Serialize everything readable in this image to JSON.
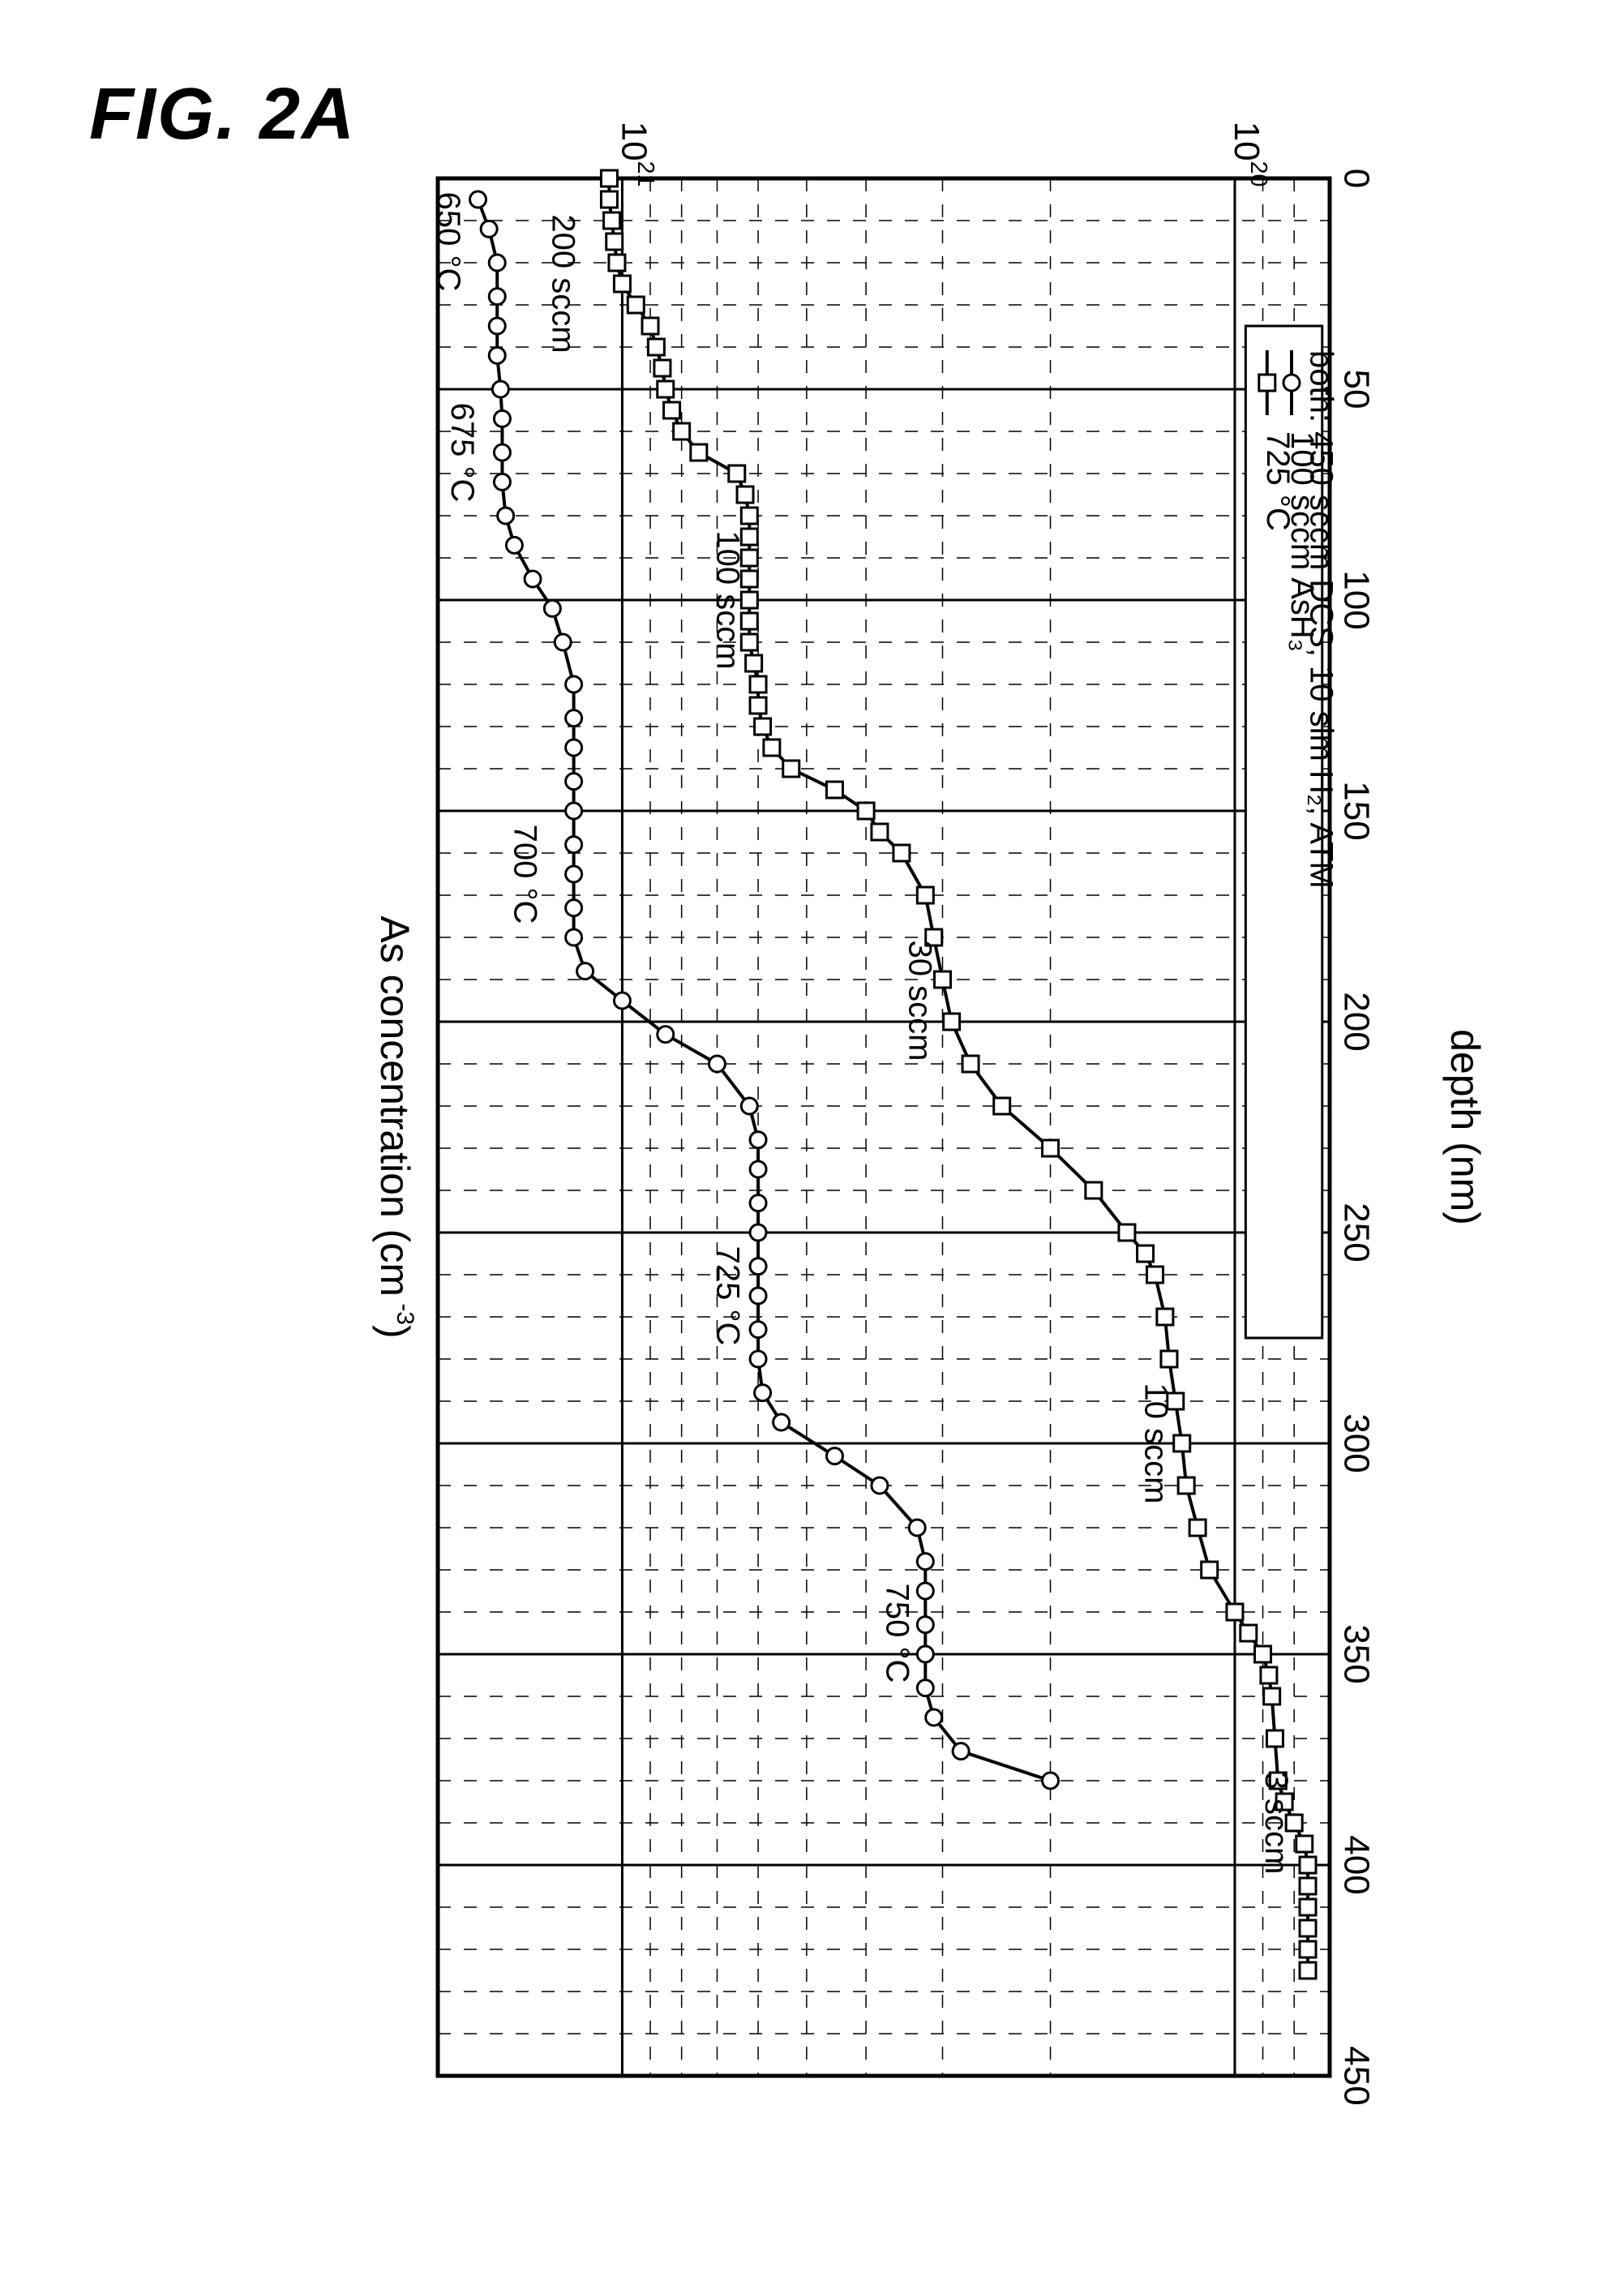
{
  "figure_label": "FIG. 2A",
  "chart": {
    "type": "line-log",
    "orientation_note": "image is rotated 90° CW — depth axis runs top→bottom, concentration axis runs right→left",
    "xlabel": "depth (nm)",
    "ylabel": "As concentration (cm⁻³)",
    "xlim": [
      0,
      450
    ],
    "ylim": [
      7e+19,
      2e+21
    ],
    "xtick_step": 50,
    "xticks": [
      0,
      50,
      100,
      150,
      200,
      250,
      300,
      350,
      400,
      450
    ],
    "yticks_major": [
      1e+20,
      1e+21
    ],
    "ytick_labels": [
      "10²⁰",
      "10²¹"
    ],
    "font_axis_label": 50,
    "font_tick": 44,
    "font_anno": 40,
    "font_legend": 40,
    "grid_color": "#000000",
    "frame_color": "#000000",
    "background_color": "#ffffff",
    "line_width": 4,
    "marker_outline_width": 3,
    "marker_size": 20,
    "marker_fill": "#ffffff",
    "series": [
      {
        "name": "725 °C",
        "marker": "square",
        "points": [
          [
            0,
            1.05e+21
          ],
          [
            5,
            1.05e+21
          ],
          [
            10,
            1.04e+21
          ],
          [
            15,
            1.03e+21
          ],
          [
            20,
            1.02e+21
          ],
          [
            25,
            1e+21
          ],
          [
            30,
            9.5e+20
          ],
          [
            35,
            9e+20
          ],
          [
            40,
            8.8e+20
          ],
          [
            45,
            8.6e+20
          ],
          [
            50,
            8.5e+20
          ],
          [
            55,
            8.3e+20
          ],
          [
            60,
            8e+20
          ],
          [
            65,
            7.5e+20
          ],
          [
            70,
            6.5e+20
          ],
          [
            75,
            6.3e+20
          ],
          [
            80,
            6.2e+20
          ],
          [
            85,
            6.2e+20
          ],
          [
            90,
            6.2e+20
          ],
          [
            95,
            6.2e+20
          ],
          [
            100,
            6.2e+20
          ],
          [
            105,
            6.2e+20
          ],
          [
            110,
            6.2e+20
          ],
          [
            115,
            6.1e+20
          ],
          [
            120,
            6e+20
          ],
          [
            125,
            6e+20
          ],
          [
            130,
            5.9e+20
          ],
          [
            135,
            5.7e+20
          ],
          [
            140,
            5.3e+20
          ],
          [
            145,
            4.5e+20
          ],
          [
            150,
            4e+20
          ],
          [
            155,
            3.8e+20
          ],
          [
            160,
            3.5e+20
          ],
          [
            170,
            3.2e+20
          ],
          [
            180,
            3.1e+20
          ],
          [
            190,
            3e+20
          ],
          [
            200,
            2.9e+20
          ],
          [
            210,
            2.7e+20
          ],
          [
            220,
            2.4e+20
          ],
          [
            230,
            2e+20
          ],
          [
            240,
            1.7e+20
          ],
          [
            250,
            1.5e+20
          ],
          [
            255,
            1.4e+20
          ],
          [
            260,
            1.35e+20
          ],
          [
            270,
            1.3e+20
          ],
          [
            280,
            1.28e+20
          ],
          [
            290,
            1.25e+20
          ],
          [
            300,
            1.22e+20
          ],
          [
            310,
            1.2e+20
          ],
          [
            320,
            1.15e+20
          ],
          [
            330,
            1.1e+20
          ],
          [
            340,
            1e+20
          ],
          [
            345,
            9.5e+19
          ],
          [
            350,
            9e+19
          ],
          [
            355,
            8.8e+19
          ],
          [
            360,
            8.7e+19
          ],
          [
            370,
            8.6e+19
          ],
          [
            380,
            8.5e+19
          ],
          [
            385,
            8.3e+19
          ],
          [
            390,
            8e+19
          ],
          [
            395,
            7.7e+19
          ],
          [
            400,
            7.6e+19
          ],
          [
            405,
            7.6e+19
          ],
          [
            410,
            7.6e+19
          ],
          [
            415,
            7.6e+19
          ],
          [
            420,
            7.6e+19
          ],
          [
            425,
            7.6e+19
          ]
        ],
        "annotations": [
          {
            "depth": 25,
            "conc": 1.3e+21,
            "text": "200 sccm"
          },
          {
            "depth": 100,
            "conc": 7e+20,
            "text": "100 sccm"
          },
          {
            "depth": 195,
            "conc": 3.4e+20,
            "text": "30 sccm"
          },
          {
            "depth": 300,
            "conc": 1.4e+20,
            "text": "10 sccm"
          },
          {
            "depth": 390,
            "conc": 8.9e+19,
            "text": "3 sccm"
          }
        ]
      },
      {
        "name": "100 sccm AsH₃",
        "marker": "circle",
        "points": [
          [
            5,
            1.72e+21
          ],
          [
            12,
            1.65e+21
          ],
          [
            20,
            1.6e+21
          ],
          [
            28,
            1.6e+21
          ],
          [
            35,
            1.6e+21
          ],
          [
            42,
            1.6e+21
          ],
          [
            50,
            1.58e+21
          ],
          [
            57,
            1.57e+21
          ],
          [
            65,
            1.57e+21
          ],
          [
            72,
            1.57e+21
          ],
          [
            80,
            1.55e+21
          ],
          [
            87,
            1.5e+21
          ],
          [
            95,
            1.4e+21
          ],
          [
            102,
            1.3e+21
          ],
          [
            110,
            1.25e+21
          ],
          [
            120,
            1.2e+21
          ],
          [
            128,
            1.2e+21
          ],
          [
            135,
            1.2e+21
          ],
          [
            143,
            1.2e+21
          ],
          [
            150,
            1.2e+21
          ],
          [
            158,
            1.2e+21
          ],
          [
            165,
            1.2e+21
          ],
          [
            173,
            1.2e+21
          ],
          [
            180,
            1.2e+21
          ],
          [
            188,
            1.15e+21
          ],
          [
            195,
            1e+21
          ],
          [
            203,
            8.5e+20
          ],
          [
            210,
            7e+20
          ],
          [
            220,
            6.2e+20
          ],
          [
            228,
            6e+20
          ],
          [
            235,
            6e+20
          ],
          [
            243,
            6e+20
          ],
          [
            250,
            6e+20
          ],
          [
            258,
            6e+20
          ],
          [
            265,
            6e+20
          ],
          [
            273,
            6e+20
          ],
          [
            280,
            6e+20
          ],
          [
            288,
            5.9e+20
          ],
          [
            295,
            5.5e+20
          ],
          [
            303,
            4.5e+20
          ],
          [
            310,
            3.8e+20
          ],
          [
            320,
            3.3e+20
          ],
          [
            328,
            3.2e+20
          ],
          [
            335,
            3.2e+20
          ],
          [
            343,
            3.2e+20
          ],
          [
            350,
            3.2e+20
          ],
          [
            358,
            3.2e+20
          ],
          [
            365,
            3.1e+20
          ],
          [
            373,
            2.8e+20
          ],
          [
            380,
            2e+20
          ]
        ],
        "annotations": [
          {
            "depth": 15,
            "conc": 2e+21,
            "text": "650 °C"
          },
          {
            "depth": 65,
            "conc": 1.9e+21,
            "text": "675 °C"
          },
          {
            "depth": 165,
            "conc": 1.5e+21,
            "text": "700 °C"
          },
          {
            "depth": 265,
            "conc": 7e+20,
            "text": "725 °C"
          },
          {
            "depth": 345,
            "conc": 3.7e+20,
            "text": "750 °C"
          }
        ]
      }
    ],
    "legend": {
      "entries": [
        {
          "marker": "square",
          "label": "725 °C"
        },
        {
          "marker": "circle",
          "label": "100 sccm AsH₃"
        }
      ],
      "footer": "both: 450 sccm DCS, 10 slm H₂, ATM"
    }
  }
}
